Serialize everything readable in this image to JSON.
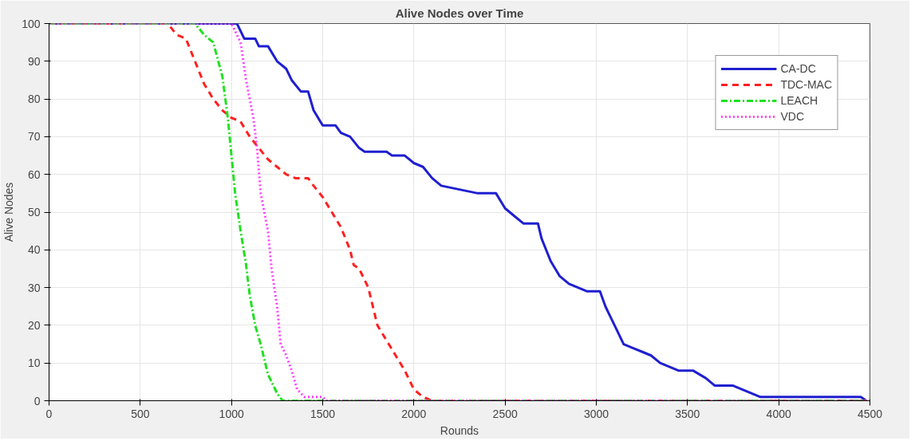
{
  "chart_data": {
    "type": "line",
    "title": "Alive Nodes over Time",
    "xlabel": "Rounds",
    "ylabel": "Alive Nodes",
    "xlim": [
      0,
      4500
    ],
    "xticks": [
      0,
      500,
      1000,
      1500,
      2000,
      2500,
      3000,
      3500,
      4000,
      4500
    ],
    "ylim": [
      0,
      100
    ],
    "yticks": [
      0,
      10,
      20,
      30,
      40,
      50,
      60,
      70,
      80,
      90,
      100
    ],
    "grid": true,
    "legend": "top right",
    "series": [
      {
        "name": "CA-DC",
        "color": "#1f1fd0",
        "line_style": "solid",
        "x": [
          0,
          1030,
          1070,
          1130,
          1150,
          1200,
          1250,
          1300,
          1330,
          1380,
          1420,
          1450,
          1500,
          1570,
          1600,
          1650,
          1700,
          1730,
          1850,
          1880,
          1950,
          2000,
          2050,
          2100,
          2150,
          2250,
          2350,
          2450,
          2500,
          2550,
          2600,
          2680,
          2700,
          2750,
          2800,
          2850,
          2900,
          2950,
          3020,
          3050,
          3100,
          3150,
          3200,
          3250,
          3300,
          3350,
          3400,
          3450,
          3530,
          3600,
          3650,
          3750,
          3800,
          3900,
          4450,
          4480
        ],
        "values": [
          100,
          100,
          96,
          96,
          94,
          94,
          90,
          88,
          85,
          82,
          82,
          77,
          73,
          73,
          71,
          70,
          67,
          66,
          66,
          65,
          65,
          63,
          62,
          59,
          57,
          56,
          55,
          55,
          51,
          49,
          47,
          47,
          43,
          37,
          33,
          31,
          30,
          29,
          29,
          25,
          20,
          15,
          14,
          13,
          12,
          10,
          9,
          8,
          8,
          6,
          4,
          4,
          3,
          1,
          1,
          0
        ]
      },
      {
        "name": "TDC-MAC",
        "color": "#ff2020",
        "line_style": "dashed",
        "x": [
          0,
          650,
          700,
          750,
          800,
          850,
          900,
          950,
          1000,
          1050,
          1100,
          1150,
          1200,
          1250,
          1300,
          1350,
          1420,
          1450,
          1500,
          1550,
          1600,
          1650,
          1670,
          1700,
          1750,
          1800,
          1850,
          1900,
          1950,
          2000,
          2050,
          2100,
          4480
        ],
        "values": [
          100,
          100,
          97,
          96,
          90,
          84,
          80,
          77,
          75,
          74,
          70,
          67,
          64,
          62,
          60,
          59,
          59,
          57,
          54,
          50,
          46,
          40,
          36,
          35,
          30,
          20,
          16,
          12,
          8,
          3,
          1,
          0,
          0
        ]
      },
      {
        "name": "LEACH",
        "color": "#20e020",
        "line_style": "dashdot",
        "x": [
          0,
          800,
          850,
          900,
          950,
          980,
          1000,
          1020,
          1050,
          1080,
          1100,
          1130,
          1160,
          1200,
          1250,
          1280,
          4480
        ],
        "values": [
          100,
          100,
          97,
          95,
          86,
          75,
          65,
          55,
          45,
          36,
          28,
          20,
          15,
          7,
          2,
          0,
          0
        ]
      },
      {
        "name": "VDC",
        "color": "#ff40ff",
        "line_style": "dotted",
        "x": [
          0,
          1000,
          1050,
          1080,
          1120,
          1140,
          1160,
          1200,
          1220,
          1250,
          1270,
          1300,
          1330,
          1360,
          1400,
          1500,
          1520,
          4480
        ],
        "values": [
          100,
          100,
          95,
          85,
          75,
          67,
          55,
          45,
          35,
          25,
          15,
          12,
          8,
          3,
          1,
          1,
          0,
          0
        ]
      }
    ]
  }
}
